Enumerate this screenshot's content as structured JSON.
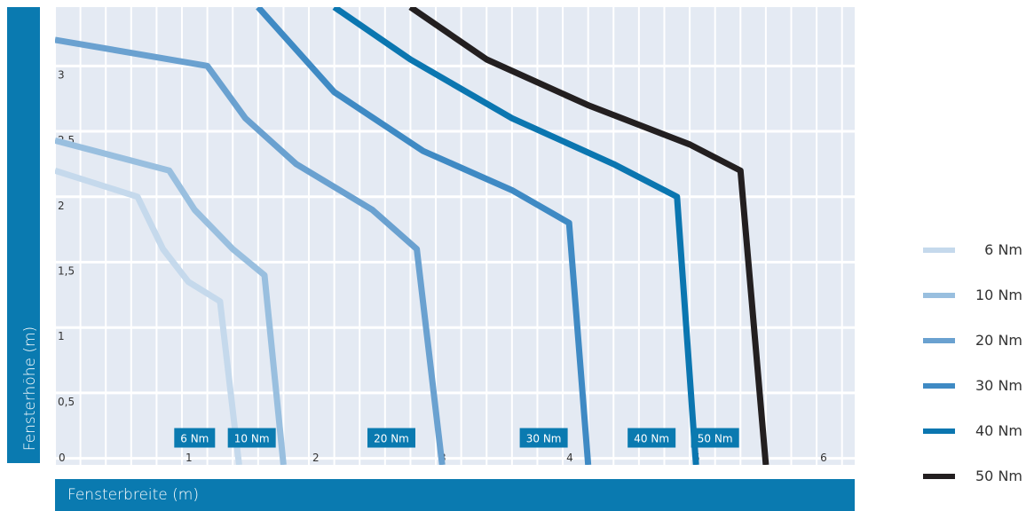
{
  "chart_data": {
    "type": "line",
    "xlabel": "Fensterbreite (m)",
    "ylabel": "Fensterhöhe (m)",
    "xlim": [
      0,
      6.3
    ],
    "ylim": [
      -0.05,
      3.45
    ],
    "x_ticks": [
      "0",
      "1",
      "2",
      "3",
      "4",
      "5",
      "6"
    ],
    "y_ticks": [
      "0,5",
      "1",
      "1,5",
      "2",
      "2,5",
      "3"
    ],
    "grid": true,
    "legend_position": "right",
    "series": [
      {
        "name": "6 Nm",
        "color": "#c5d9ec",
        "points": [
          [
            0,
            2.2
          ],
          [
            0.65,
            2.0
          ],
          [
            0.85,
            1.6
          ],
          [
            1.05,
            1.35
          ],
          [
            1.3,
            1.2
          ],
          [
            1.45,
            -0.05
          ]
        ]
      },
      {
        "name": "10 Nm",
        "color": "#99bfdf",
        "points": [
          [
            0,
            2.43
          ],
          [
            0.9,
            2.2
          ],
          [
            1.1,
            1.9
          ],
          [
            1.4,
            1.6
          ],
          [
            1.65,
            1.4
          ],
          [
            1.8,
            -0.05
          ]
        ]
      },
      {
        "name": "20 Nm",
        "color": "#6aa1d0",
        "points": [
          [
            0,
            3.2
          ],
          [
            1.2,
            3.0
          ],
          [
            1.5,
            2.6
          ],
          [
            1.9,
            2.25
          ],
          [
            2.5,
            1.9
          ],
          [
            2.85,
            1.6
          ],
          [
            3.05,
            -0.05
          ]
        ]
      },
      {
        "name": "30 Nm",
        "color": "#3f8ac4",
        "points": [
          [
            1.6,
            3.45
          ],
          [
            2.2,
            2.8
          ],
          [
            2.9,
            2.35
          ],
          [
            3.6,
            2.05
          ],
          [
            4.05,
            1.8
          ],
          [
            4.2,
            -0.05
          ]
        ]
      },
      {
        "name": "40 Nm",
        "color": "#0b76b0",
        "points": [
          [
            2.2,
            3.45
          ],
          [
            2.8,
            3.05
          ],
          [
            3.6,
            2.6
          ],
          [
            4.4,
            2.25
          ],
          [
            4.9,
            2.0
          ],
          [
            5.05,
            -0.05
          ]
        ]
      },
      {
        "name": "50 Nm",
        "color": "#231f20",
        "points": [
          [
            2.8,
            3.45
          ],
          [
            3.4,
            3.05
          ],
          [
            4.2,
            2.7
          ],
          [
            5.0,
            2.4
          ],
          [
            5.4,
            2.2
          ],
          [
            5.6,
            -0.05
          ]
        ]
      }
    ],
    "annotations": [
      {
        "text": "6 Nm",
        "x": 1.1
      },
      {
        "text": "10 Nm",
        "x": 1.55
      },
      {
        "text": "20 Nm",
        "x": 2.65
      },
      {
        "text": "30 Nm",
        "x": 3.85
      },
      {
        "text": "40 Nm",
        "x": 4.7
      },
      {
        "text": "50 Nm",
        "x": 5.2
      }
    ],
    "colors": {
      "background": "#e4eaf3",
      "grid": "#ffffff",
      "label_box": "#0a7ab0",
      "band": "#0a7ab0"
    }
  },
  "legend": {
    "items": [
      {
        "label": "6 Nm",
        "color": "#c5d9ec"
      },
      {
        "label": "10 Nm",
        "color": "#99bfdf"
      },
      {
        "label": "20 Nm",
        "color": "#6aa1d0"
      },
      {
        "label": "30 Nm",
        "color": "#3f8ac4"
      },
      {
        "label": "40 Nm",
        "color": "#0b76b0"
      },
      {
        "label": "50 Nm",
        "color": "#231f20"
      }
    ]
  }
}
